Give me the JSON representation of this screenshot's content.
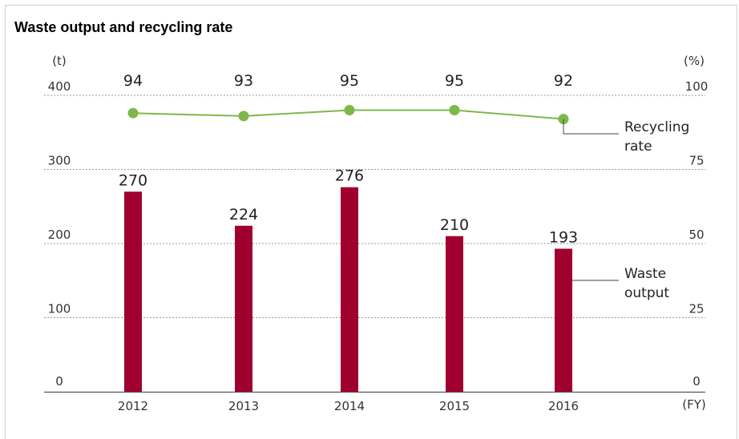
{
  "chart_data": {
    "type": "bar",
    "title": "Waste output and recycling rate",
    "categories": [
      "2012",
      "2013",
      "2014",
      "2015",
      "2016"
    ],
    "x_unit": "(FY)",
    "y_left": {
      "unit": "(t)",
      "ylim": [
        0,
        400
      ],
      "ticks": [
        "0",
        "100",
        "200",
        "300",
        "400"
      ]
    },
    "y_right": {
      "unit": "(%)",
      "ylim": [
        0,
        100
      ],
      "ticks": [
        "0",
        "25",
        "50",
        "75",
        "100"
      ]
    },
    "grid": true,
    "series": [
      {
        "name": "Waste output",
        "kind": "bar",
        "axis": "left",
        "values": [
          270,
          224,
          276,
          210,
          193
        ],
        "labels": [
          "270",
          "224",
          "276",
          "210",
          "193"
        ],
        "color": "#a0002e"
      },
      {
        "name": "Recycling rate",
        "kind": "line",
        "axis": "right",
        "values": [
          94,
          93,
          95,
          95,
          92
        ],
        "labels": [
          "94",
          "93",
          "95",
          "95",
          "92"
        ],
        "color": "#7db84a"
      }
    ],
    "legend_labels": {
      "line": [
        "Recycling",
        "rate"
      ],
      "bar": [
        "Waste",
        "output"
      ]
    }
  }
}
